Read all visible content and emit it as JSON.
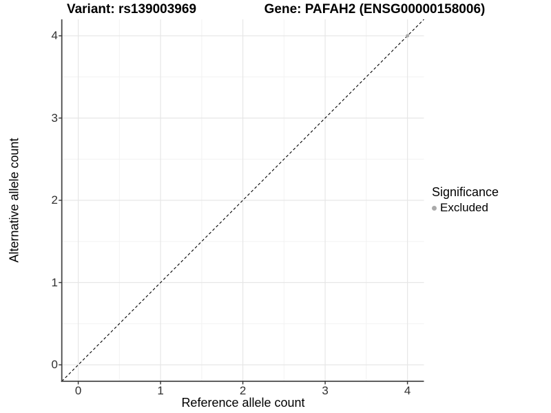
{
  "titles": {
    "variant": "Variant: rs139003969",
    "gene": "Gene: PAFAH2 (ENSG00000158006)"
  },
  "axes": {
    "x_label": "Reference allele count",
    "y_label": "Alternative allele count"
  },
  "legend": {
    "title": "Significance",
    "items": [
      {
        "label": "Excluded",
        "color": "#aaaaaa"
      }
    ]
  },
  "chart_data": {
    "type": "scatter",
    "title": "Variant: rs139003969   Gene: PAFAH2 (ENSG00000158006)",
    "xlabel": "Reference allele count",
    "ylabel": "Alternative allele count",
    "xlim": [
      -0.2,
      4.2
    ],
    "ylim": [
      -0.2,
      4.2
    ],
    "x_ticks": [
      0,
      1,
      2,
      3,
      4
    ],
    "y_ticks": [
      0,
      1,
      2,
      3,
      4
    ],
    "x_minor_ticks": [
      0.5,
      1.5,
      2.5,
      3.5
    ],
    "y_minor_ticks": [
      0.5,
      1.5,
      2.5,
      3.5
    ],
    "grid": {
      "major_color": "#e6e6e6",
      "minor_color": "#f2f2f2",
      "background": "#ffffff"
    },
    "axis_line_color": "#474747",
    "tick_mark_color": "#333333",
    "reference_line": {
      "type": "identity",
      "slope": 1,
      "intercept": 0,
      "style": "dashed",
      "color": "#000000"
    },
    "series": [
      {
        "name": "Excluded",
        "color": "#aaaaaa",
        "points": [
          {
            "x": 4,
            "y": 4
          }
        ]
      }
    ],
    "legend_position": "right",
    "legend_title": "Significance"
  }
}
